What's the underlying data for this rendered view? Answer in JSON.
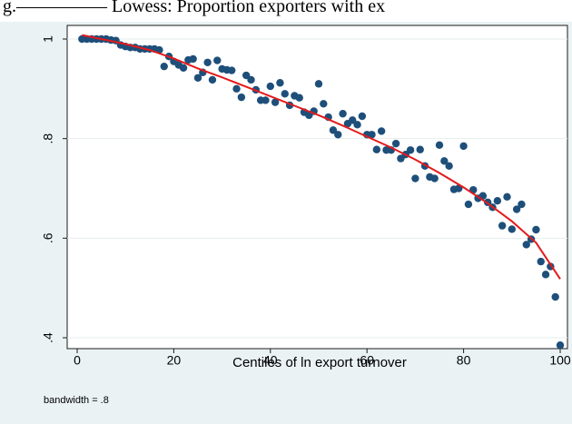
{
  "caption": "g.————— Lowess: Proportion exporters with ex",
  "chart_data": {
    "type": "scatter",
    "xlabel": "Centiles of ln export turnover",
    "ylabel": "",
    "note": "bandwidth = .8",
    "xlim": [
      0,
      100
    ],
    "ylim": [
      0.38,
      1.01
    ],
    "x_ticks": [
      0,
      20,
      40,
      60,
      80,
      100
    ],
    "x_tick_labels": [
      "0",
      "20",
      "40",
      "60",
      "80",
      "100"
    ],
    "y_ticks": [
      0.4,
      0.6,
      0.8,
      1
    ],
    "y_tick_labels": [
      ".4",
      ".6",
      ".8",
      "1"
    ],
    "grid": "horizontal",
    "series": [
      {
        "kind": "points",
        "color": "#1e4f7a",
        "x": [
          1,
          2,
          3,
          4,
          5,
          6,
          7,
          8,
          9,
          10,
          11,
          12,
          13,
          14,
          15,
          16,
          17,
          18,
          19,
          20,
          21,
          22,
          23,
          24,
          25,
          26,
          27,
          28,
          29,
          30,
          31,
          32,
          33,
          34,
          35,
          36,
          37,
          38,
          39,
          40,
          41,
          42,
          43,
          44,
          45,
          46,
          47,
          48,
          49,
          50,
          51,
          52,
          53,
          54,
          55,
          56,
          57,
          58,
          59,
          60,
          61,
          62,
          63,
          64,
          65,
          66,
          67,
          68,
          69,
          70,
          71,
          72,
          73,
          74,
          75,
          76,
          77,
          78,
          79,
          80,
          81,
          82,
          83,
          84,
          85,
          86,
          87,
          88,
          89,
          90,
          91,
          92,
          93,
          94,
          95,
          96,
          97,
          98,
          99,
          100
        ],
        "y": [
          1.0,
          1.0,
          1.0,
          1.0,
          1.0,
          1.0,
          0.998,
          0.997,
          0.988,
          0.985,
          0.983,
          0.983,
          0.98,
          0.98,
          0.98,
          0.98,
          0.978,
          0.945,
          0.965,
          0.955,
          0.948,
          0.942,
          0.958,
          0.96,
          0.922,
          0.933,
          0.953,
          0.918,
          0.957,
          0.94,
          0.938,
          0.937,
          0.9,
          0.883,
          0.927,
          0.918,
          0.898,
          0.877,
          0.877,
          0.905,
          0.873,
          0.912,
          0.89,
          0.867,
          0.886,
          0.882,
          0.853,
          0.847,
          0.855,
          0.91,
          0.87,
          0.843,
          0.817,
          0.808,
          0.85,
          0.83,
          0.837,
          0.828,
          0.845,
          0.808,
          0.808,
          0.778,
          0.815,
          0.777,
          0.777,
          0.79,
          0.76,
          0.768,
          0.777,
          0.72,
          0.778,
          0.745,
          0.723,
          0.72,
          0.787,
          0.755,
          0.745,
          0.698,
          0.7,
          0.785,
          0.668,
          0.697,
          0.68,
          0.685,
          0.672,
          0.662,
          0.675,
          0.625,
          0.683,
          0.618,
          0.658,
          0.668,
          0.587,
          0.598,
          0.617,
          0.553,
          0.527,
          0.543,
          0.482,
          0.385
        ]
      },
      {
        "kind": "line",
        "color": "#e41a1c",
        "x": [
          1,
          5,
          10,
          15,
          20,
          25,
          30,
          35,
          40,
          45,
          50,
          55,
          60,
          65,
          70,
          75,
          80,
          85,
          90,
          95,
          100
        ],
        "y": [
          1.008,
          1.0,
          0.99,
          0.978,
          0.961,
          0.941,
          0.923,
          0.904,
          0.885,
          0.866,
          0.847,
          0.826,
          0.804,
          0.782,
          0.758,
          0.731,
          0.702,
          0.67,
          0.634,
          0.591,
          0.518
        ]
      }
    ]
  }
}
